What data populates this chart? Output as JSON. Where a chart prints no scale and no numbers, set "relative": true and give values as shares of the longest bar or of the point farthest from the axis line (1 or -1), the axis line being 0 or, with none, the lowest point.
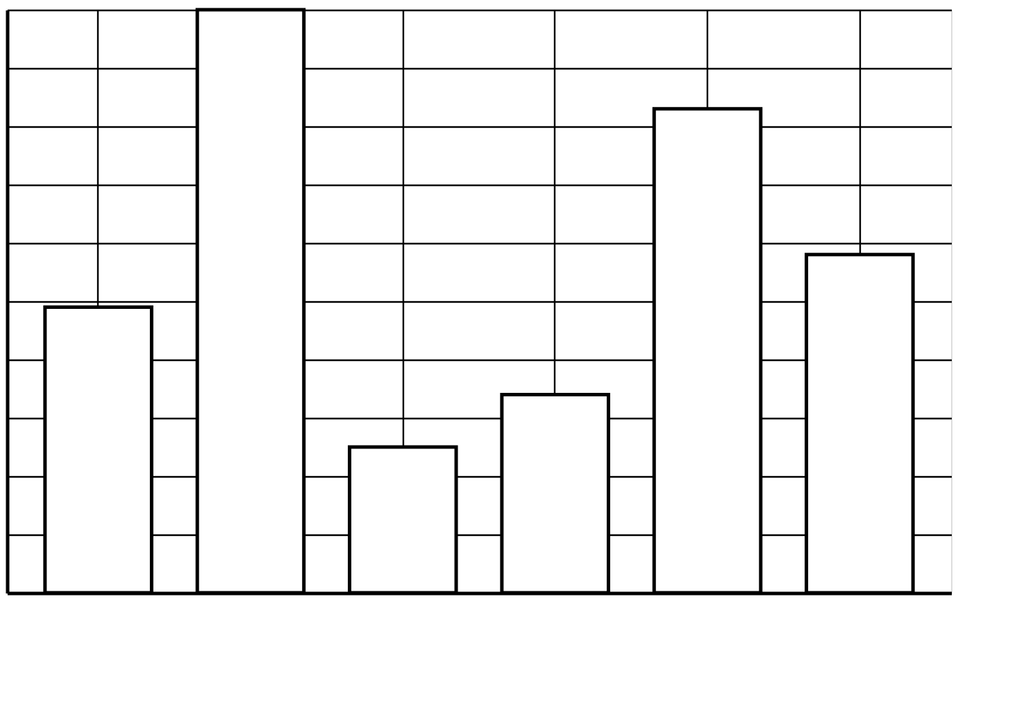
{
  "chart_data": {
    "type": "bar",
    "relative": true,
    "categories": [
      null,
      null,
      null,
      null,
      null,
      null
    ],
    "values": [
      0.49,
      1,
      0.25,
      0.34,
      0.83,
      0.58
    ],
    "color": "#ffffff",
    "grid": true
  }
}
